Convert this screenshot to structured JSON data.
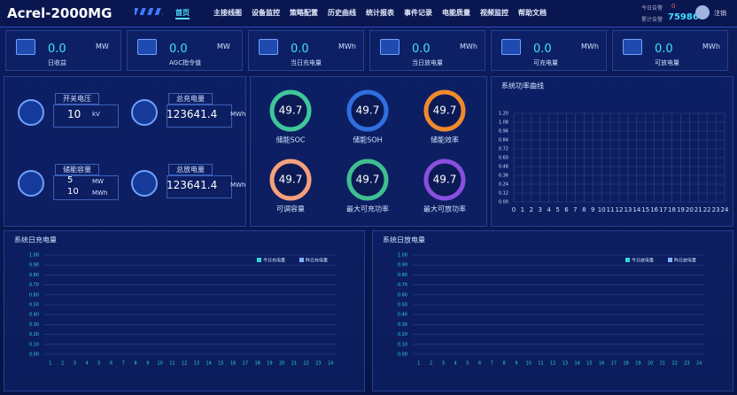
{
  "header": {
    "title": "Acrel-2000MG",
    "nav": [
      "首页",
      "主接线图",
      "设备监控",
      "策略配置",
      "历史曲线",
      "统计报表",
      "事件记录",
      "电能质量",
      "视频监控",
      "帮助文档"
    ],
    "alarms": {
      "today_label": "今日告警",
      "today": "0",
      "total_label": "累计告警",
      "total": "75986"
    },
    "logout": "注销"
  },
  "kpis": [
    {
      "value": "0.0",
      "unit": "MW",
      "label": "日收益"
    },
    {
      "value": "0.0",
      "unit": "MW",
      "label": "AGC指令值"
    },
    {
      "value": "0.0",
      "unit": "MWh",
      "label": "当日充电量"
    },
    {
      "value": "0.0",
      "unit": "MWh",
      "label": "当日放电量"
    },
    {
      "value": "0.0",
      "unit": "MWh",
      "label": "可充电量"
    },
    {
      "value": "0.0",
      "unit": "MWh",
      "label": "可放电量"
    }
  ],
  "stats": [
    {
      "label": "开关电压",
      "values": [
        {
          "value": "10",
          "unit": "kV"
        }
      ]
    },
    {
      "label": "总充电量",
      "values": [
        {
          "value": "123641.4",
          "unit": "MWh"
        }
      ]
    },
    {
      "label": "储能容量",
      "values": [
        {
          "value": "5",
          "unit": "MW"
        },
        {
          "value": "10",
          "unit": "MWh"
        }
      ]
    },
    {
      "label": "总放电量",
      "values": [
        {
          "value": "123641.4",
          "unit": "MWh"
        }
      ]
    }
  ],
  "gauges": [
    {
      "value": "49.7",
      "label": "储能SOC",
      "color": "#3fc79a"
    },
    {
      "value": "49.7",
      "label": "储能SOH",
      "color": "#2f6fe0"
    },
    {
      "value": "49.7",
      "label": "储能效率",
      "color": "#f08a2c"
    },
    {
      "value": "49.7",
      "label": "可调容量",
      "color": "#f4a07c"
    },
    {
      "value": "49.7",
      "label": "最大可充功率",
      "color": "#3fbf8f"
    },
    {
      "value": "49.7",
      "label": "最大可放功率",
      "color": "#8a4fe0"
    }
  ],
  "chart_data": [
    {
      "type": "line",
      "title": "系统功率曲线",
      "xlim": [
        0,
        24
      ],
      "xticks": [
        0,
        1,
        2,
        3,
        4,
        5,
        6,
        7,
        8,
        9,
        10,
        11,
        12,
        13,
        14,
        15,
        16,
        17,
        18,
        19,
        20,
        21,
        22,
        23,
        24
      ],
      "ylim": [
        0,
        1.2
      ],
      "yticks": [
        {
          "value": 0,
          "label": "0.00"
        },
        {
          "value": 0.12,
          "label": "0.12"
        },
        {
          "value": 0.24,
          "label": "0.24"
        },
        {
          "value": 0.36,
          "label": "0.36"
        },
        {
          "value": 0.48,
          "label": "0.48"
        },
        {
          "value": 0.6,
          "label": "0.60"
        },
        {
          "value": 0.72,
          "label": "0.72"
        },
        {
          "value": 0.84,
          "label": "0.84"
        },
        {
          "value": 0.96,
          "label": "0.96"
        },
        {
          "value": 1.08,
          "label": "1.08"
        },
        {
          "value": 1.2,
          "label": "1.20"
        }
      ],
      "grid": "both"
    },
    {
      "type": "bar",
      "title": "系统日充电量",
      "categories": [
        1,
        2,
        3,
        4,
        5,
        6,
        7,
        8,
        9,
        10,
        11,
        12,
        13,
        14,
        15,
        16,
        17,
        18,
        19,
        20,
        21,
        22,
        23,
        24
      ],
      "ylim": [
        0,
        1
      ],
      "yticks": [
        {
          "value": 0,
          "label": "0.00"
        },
        {
          "value": 0.1,
          "label": "0.10"
        },
        {
          "value": 0.2,
          "label": "0.20"
        },
        {
          "value": 0.3,
          "label": "0.30"
        },
        {
          "value": 0.4,
          "label": "0.40"
        },
        {
          "value": 0.5,
          "label": "0.50"
        },
        {
          "value": 0.6,
          "label": "0.60"
        },
        {
          "value": 0.7,
          "label": "0.70"
        },
        {
          "value": 0.8,
          "label": "0.80"
        },
        {
          "value": 0.9,
          "label": "0.90"
        },
        {
          "value": 1,
          "label": "1.00"
        }
      ],
      "grid": "y",
      "series": [
        {
          "name": "今日充电量",
          "color": "#2fd6e0"
        },
        {
          "name": "昨日充电量",
          "color": "#7fb0ff"
        }
      ]
    },
    {
      "type": "bar",
      "title": "系统日放电量",
      "categories": [
        1,
        2,
        3,
        4,
        5,
        6,
        7,
        8,
        9,
        10,
        11,
        12,
        13,
        14,
        15,
        16,
        17,
        18,
        19,
        20,
        21,
        22,
        23,
        24
      ],
      "ylim": [
        0,
        1
      ],
      "yticks": [
        {
          "value": 0,
          "label": "0.00"
        },
        {
          "value": 0.1,
          "label": "0.10"
        },
        {
          "value": 0.2,
          "label": "0.20"
        },
        {
          "value": 0.3,
          "label": "0.30"
        },
        {
          "value": 0.4,
          "label": "0.40"
        },
        {
          "value": 0.5,
          "label": "0.50"
        },
        {
          "value": 0.6,
          "label": "0.60"
        },
        {
          "value": 0.7,
          "label": "0.70"
        },
        {
          "value": 0.8,
          "label": "0.80"
        },
        {
          "value": 0.9,
          "label": "0.90"
        },
        {
          "value": 1,
          "label": "1.00"
        }
      ],
      "grid": "y",
      "series": [
        {
          "name": "今日放电量",
          "color": "#2fd6e0"
        },
        {
          "name": "昨日放电量",
          "color": "#7fb0ff"
        }
      ]
    }
  ]
}
